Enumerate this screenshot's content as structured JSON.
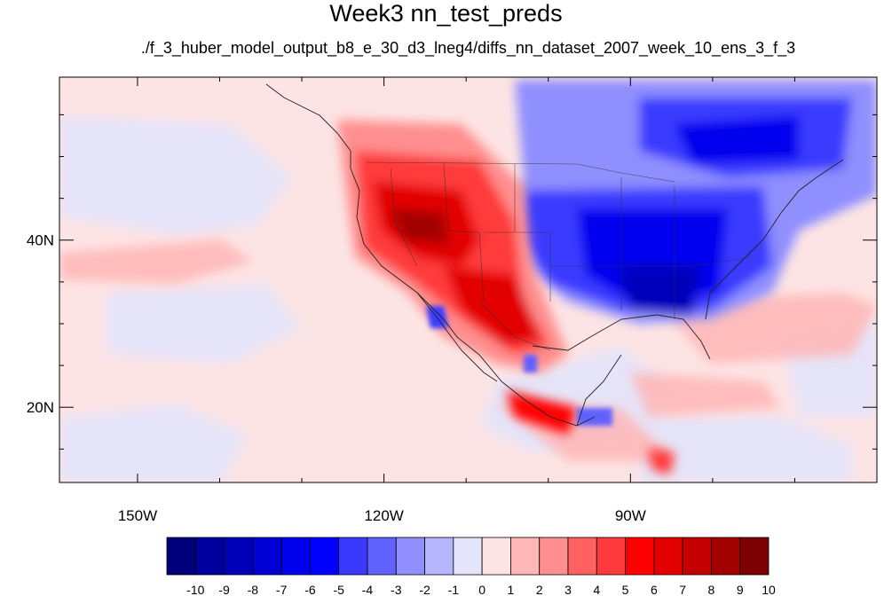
{
  "title": "Week3 nn_test_preds",
  "subtitle": "./f_3_huber_model_output_b8_e_30_d3_lneg4/diffs_nn_dataset_2007_week_10_ens_3_f_3",
  "axes": {
    "lat_labels": [
      {
        "text": "40N",
        "lat": 40
      },
      {
        "text": "20N",
        "lat": 20
      }
    ],
    "lon_labels": [
      {
        "text": "150W",
        "lon": -150
      },
      {
        "text": "120W",
        "lon": -120
      },
      {
        "text": "90W",
        "lon": -90
      }
    ],
    "extent": {
      "lon_min": -159.5,
      "lon_max": -60,
      "lat_min": 11,
      "lat_max": 59.5
    }
  },
  "colorbar": {
    "labels": [
      "-10",
      "-9",
      "-8",
      "-7",
      "-6",
      "-5",
      "-4",
      "-3",
      "-2",
      "-1",
      "0",
      "1",
      "2",
      "3",
      "4",
      "5",
      "6",
      "7",
      "8",
      "9",
      "10"
    ],
    "colors": [
      "#00007a",
      "#00009e",
      "#0000bb",
      "#0000d6",
      "#0000ee",
      "#0000ff",
      "#3a3aff",
      "#6161ff",
      "#8f8fff",
      "#b6b6ff",
      "#e4e4fb",
      "#fde4e4",
      "#ffb6b6",
      "#ff8f8f",
      "#ff6161",
      "#ff3a3a",
      "#ff0000",
      "#e20000",
      "#c40000",
      "#a30000",
      "#7f0000"
    ]
  }
}
